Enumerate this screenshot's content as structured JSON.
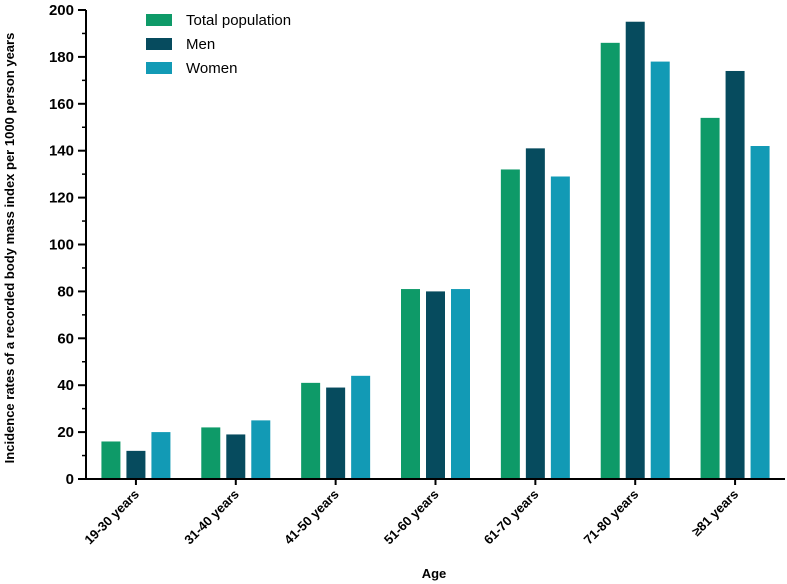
{
  "chart_data": {
    "type": "bar",
    "title": "",
    "xlabel": "Age",
    "ylabel": "Incidence rates of a recorded body mass index per 1000 person years",
    "ylim": [
      0,
      200
    ],
    "yticks": [
      0,
      20,
      40,
      60,
      80,
      100,
      120,
      140,
      160,
      180,
      200
    ],
    "legend_position": "top-left",
    "grid": false,
    "categories": [
      "19-30 years",
      "31-40 years",
      "41-50 years",
      "51-60 years",
      "61-70 years",
      "71-80 years",
      "≥81 years"
    ],
    "series": [
      {
        "name": "Total population",
        "color": "#0e9a68",
        "values": [
          16,
          22,
          41,
          81,
          132,
          186,
          154
        ]
      },
      {
        "name": "Men",
        "color": "#064b5e",
        "values": [
          12,
          19,
          39,
          80,
          141,
          195,
          174
        ]
      },
      {
        "name": "Women",
        "color": "#129ab5",
        "values": [
          20,
          25,
          44,
          81,
          129,
          178,
          142
        ]
      }
    ]
  }
}
